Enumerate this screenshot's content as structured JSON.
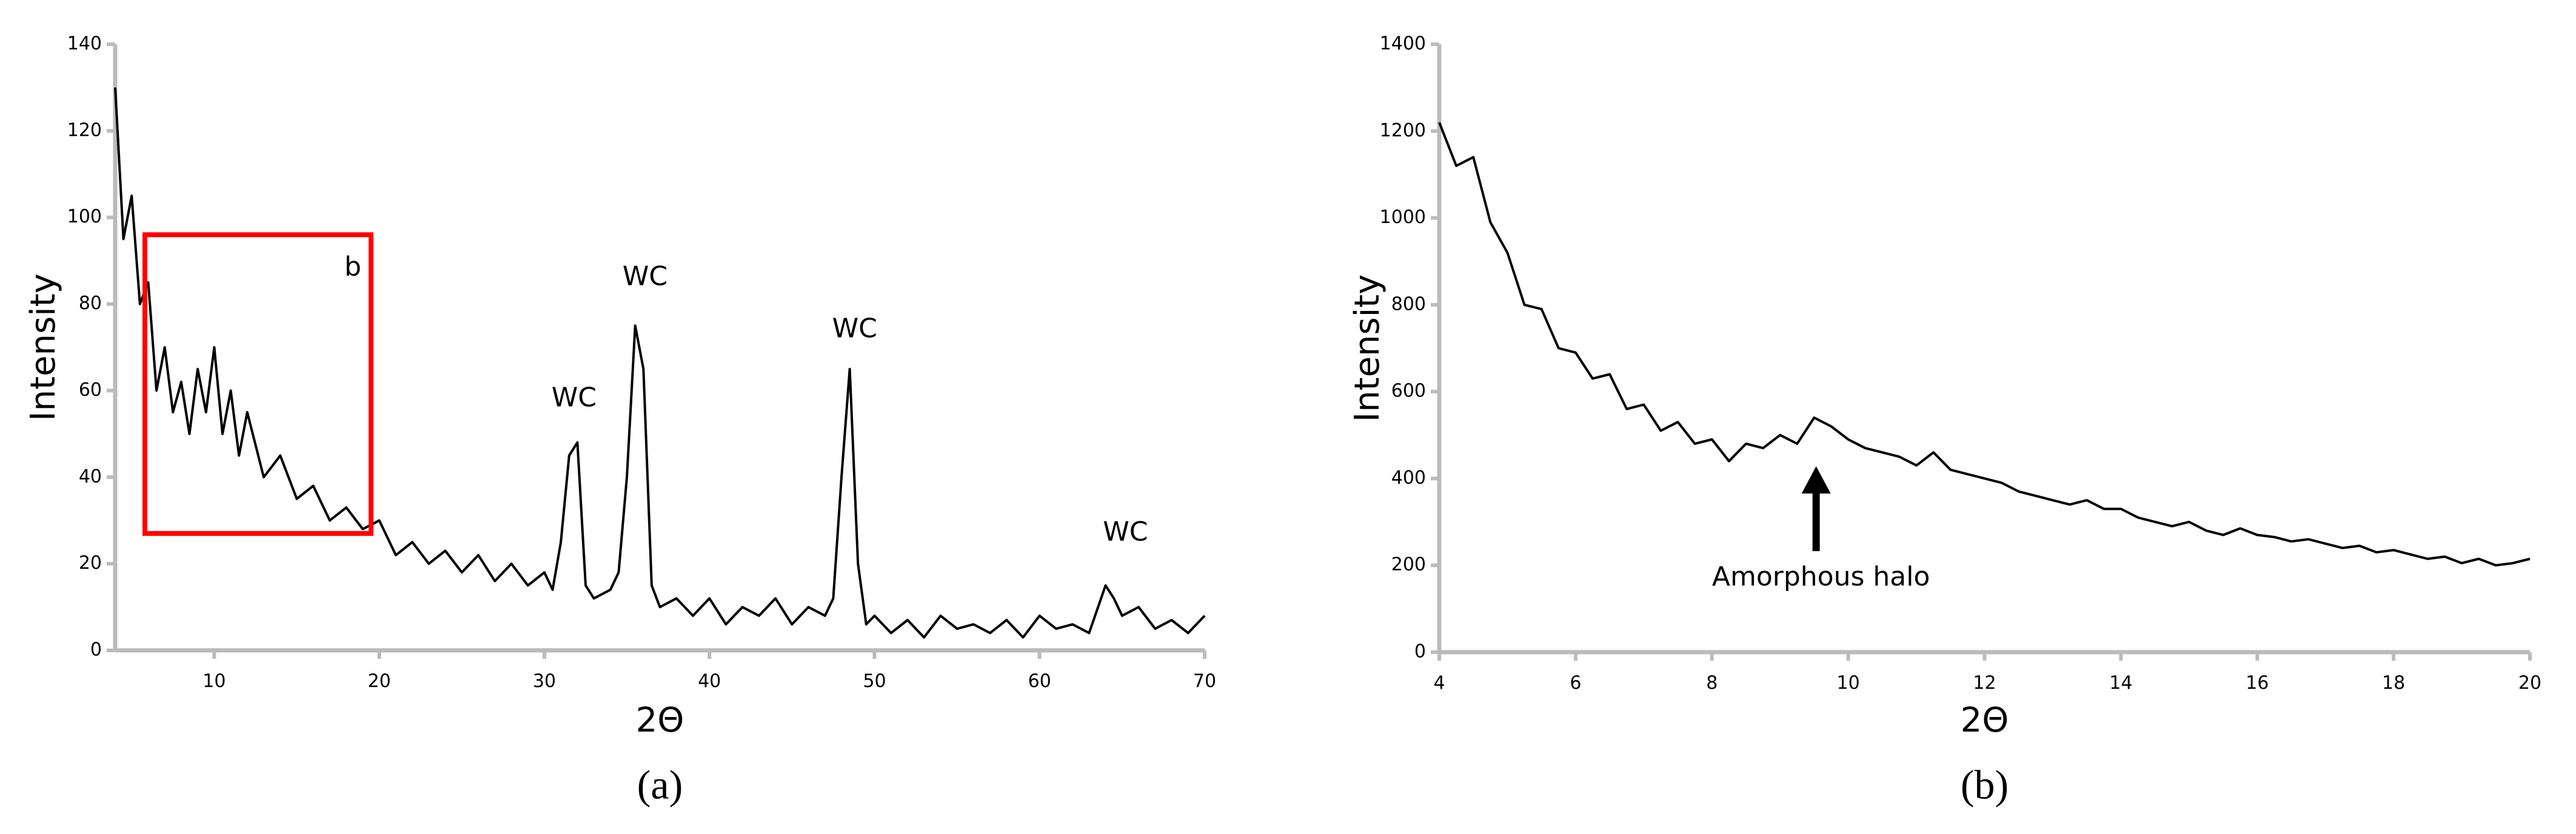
{
  "chart_data": [
    {
      "type": "line",
      "label": "(a)",
      "xlabel": "2Θ",
      "ylabel": "Intensity",
      "color": "#000000",
      "xlim": [
        4,
        70
      ],
      "xticks": [
        10,
        20,
        30,
        40,
        50,
        60,
        70
      ],
      "ylim": [
        0,
        140
      ],
      "yticks": [
        0,
        20,
        40,
        60,
        80,
        100,
        120,
        140
      ],
      "x": [
        4,
        4.5,
        5,
        5.5,
        6,
        6.5,
        7,
        7.5,
        8,
        8.5,
        9,
        9.5,
        10,
        10.5,
        11,
        11.5,
        12,
        13,
        14,
        15,
        16,
        17,
        18,
        19,
        20,
        21,
        22,
        23,
        24,
        25,
        26,
        27,
        28,
        29,
        30,
        30.5,
        31,
        31.5,
        32,
        32.5,
        33,
        34,
        34.5,
        35,
        35.5,
        36,
        36.5,
        37,
        38,
        39,
        40,
        41,
        42,
        43,
        44,
        45,
        46,
        47,
        47.5,
        48,
        48.5,
        49,
        49.5,
        50,
        51,
        52,
        53,
        54,
        55,
        56,
        57,
        58,
        59,
        60,
        61,
        62,
        63,
        64,
        64.5,
        65,
        66,
        67,
        68,
        69,
        70
      ],
      "values": [
        130,
        95,
        105,
        80,
        85,
        60,
        70,
        55,
        62,
        50,
        65,
        55,
        70,
        50,
        60,
        45,
        55,
        40,
        45,
        35,
        38,
        30,
        33,
        28,
        30,
        22,
        25,
        20,
        23,
        18,
        22,
        16,
        20,
        15,
        18,
        14,
        25,
        45,
        48,
        15,
        12,
        14,
        18,
        40,
        75,
        65,
        15,
        10,
        12,
        8,
        12,
        6,
        10,
        8,
        12,
        6,
        10,
        8,
        12,
        40,
        65,
        20,
        6,
        8,
        4,
        7,
        3,
        8,
        5,
        6,
        4,
        7,
        3,
        8,
        5,
        6,
        4,
        15,
        12,
        8,
        10,
        5,
        7,
        4,
        8
      ],
      "annotations": [
        {
          "text": "WC",
          "x": 31.8,
          "y": 58
        },
        {
          "text": "WC",
          "x": 36.1,
          "y": 86
        },
        {
          "text": "WC",
          "x": 48.8,
          "y": 74
        },
        {
          "text": "WC",
          "x": 65.2,
          "y": 27
        }
      ],
      "highlight": {
        "label": "b",
        "xlim": [
          5.8,
          19.5
        ],
        "ylim": [
          27,
          96
        ],
        "color": "#ff0000"
      }
    },
    {
      "type": "line",
      "label": "(b)",
      "xlabel": "2Θ",
      "ylabel": "Intensity",
      "color": "#000000",
      "xlim": [
        4,
        20
      ],
      "xticks": [
        4,
        6,
        8,
        10,
        12,
        14,
        16,
        18,
        20
      ],
      "ylim": [
        0,
        1400
      ],
      "yticks": [
        0,
        200,
        400,
        600,
        800,
        1000,
        1200,
        1400
      ],
      "x": [
        4,
        4.25,
        4.5,
        4.75,
        5,
        5.25,
        5.5,
        5.75,
        6,
        6.25,
        6.5,
        6.75,
        7,
        7.25,
        7.5,
        7.75,
        8,
        8.25,
        8.5,
        8.75,
        9,
        9.25,
        9.5,
        9.75,
        10,
        10.25,
        10.5,
        10.75,
        11,
        11.25,
        11.5,
        11.75,
        12,
        12.25,
        12.5,
        12.75,
        13,
        13.25,
        13.5,
        13.75,
        14,
        14.25,
        14.5,
        14.75,
        15,
        15.25,
        15.5,
        15.75,
        16,
        16.25,
        16.5,
        16.75,
        17,
        17.25,
        17.5,
        17.75,
        18,
        18.25,
        18.5,
        18.75,
        19,
        19.25,
        19.5,
        19.75,
        20
      ],
      "values": [
        1220,
        1120,
        1140,
        990,
        920,
        800,
        790,
        700,
        690,
        630,
        640,
        560,
        570,
        510,
        530,
        480,
        490,
        440,
        480,
        470,
        500,
        480,
        540,
        520,
        490,
        470,
        460,
        450,
        430,
        460,
        420,
        410,
        400,
        390,
        370,
        360,
        350,
        340,
        350,
        330,
        330,
        310,
        300,
        290,
        300,
        280,
        270,
        285,
        270,
        265,
        255,
        260,
        250,
        240,
        245,
        230,
        235,
        225,
        215,
        220,
        205,
        215,
        200,
        205,
        215
      ],
      "annotations": [
        {
          "text": "Amorphous halo",
          "x": 9.6,
          "y": 170
        }
      ]
    }
  ]
}
